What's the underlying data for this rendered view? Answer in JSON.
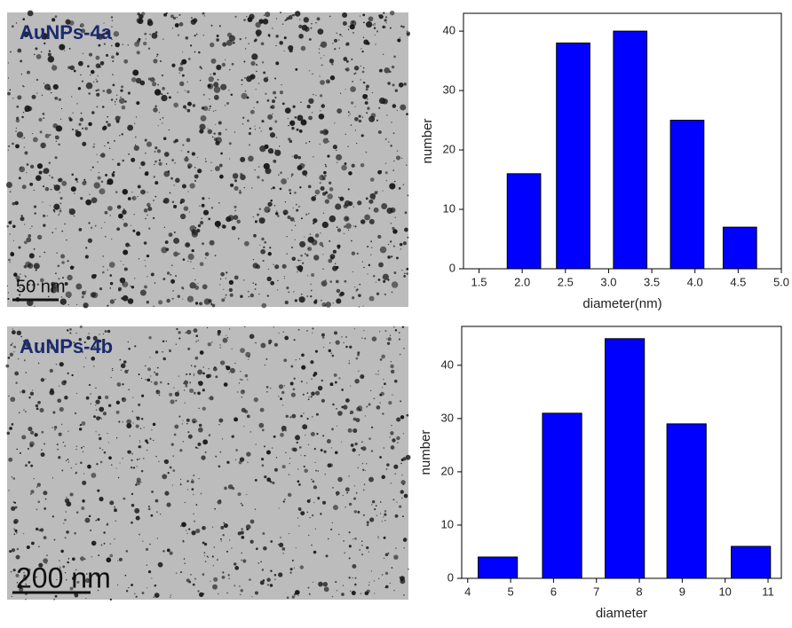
{
  "images": [
    {
      "label": "AuNPs-4a",
      "scale_bar": "50 nm"
    },
    {
      "label": "AuNPs-4b",
      "scale_bar": "200 nm"
    }
  ],
  "chart_data": [
    {
      "type": "bar",
      "x_label": "diameter(nm)",
      "y_label": "number",
      "x": [
        2.02,
        2.59,
        3.25,
        3.91,
        4.52
      ],
      "values": [
        16,
        38,
        40,
        25,
        7
      ],
      "color": "#0000ff",
      "xlim": [
        1.32,
        5.0
      ],
      "ylim": [
        0,
        43
      ],
      "xticks": [
        1.5,
        {
          "value": 2,
          "label": "2.0"
        },
        2.5,
        {
          "value": 3,
          "label": "3.0"
        },
        3.5,
        {
          "value": 4,
          "label": "4.0"
        },
        4.5,
        {
          "value": 5,
          "label": "5.0"
        }
      ],
      "yticks": [
        0,
        10,
        20,
        30,
        40
      ]
    },
    {
      "type": "bar",
      "x_label": "diameter",
      "y_label": "number",
      "x": [
        4.7,
        6.2,
        7.66,
        9.1,
        10.6
      ],
      "values": [
        4,
        31,
        45,
        29,
        6
      ],
      "color": "#0000ff",
      "xlim": [
        3.86,
        11.31
      ],
      "ylim": [
        0,
        47.3
      ],
      "xticks": [
        4,
        5,
        6,
        7,
        8,
        9,
        10,
        11
      ],
      "yticks": [
        0,
        10,
        20,
        30,
        40
      ]
    }
  ]
}
